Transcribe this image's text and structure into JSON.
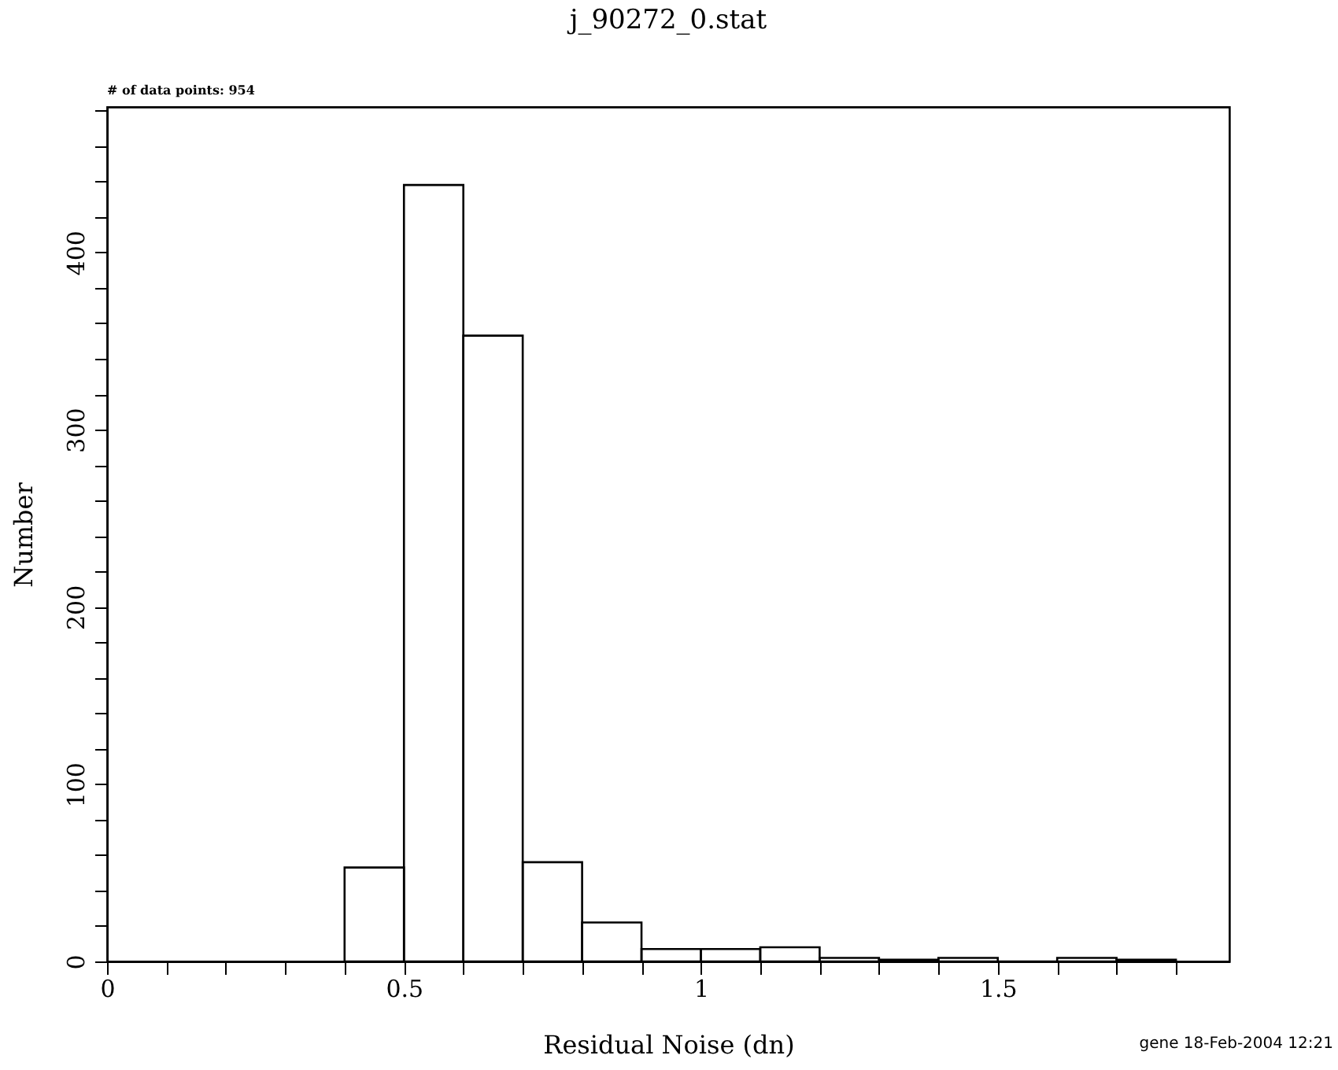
{
  "chart_data": {
    "type": "histogram",
    "title": "j_90272_0.stat",
    "xlabel": "Residual Noise (dn)",
    "ylabel": "Number",
    "bins": [
      0.4,
      0.5,
      0.6,
      0.7,
      0.8,
      0.9,
      1.0,
      1.1,
      1.2,
      1.3,
      1.4,
      1.5,
      1.6,
      1.7,
      1.8
    ],
    "values": [
      53,
      438,
      353,
      56,
      22,
      7,
      7,
      8,
      2,
      1,
      2,
      0,
      2,
      1
    ],
    "color": "#000000",
    "xlim": [
      0,
      1.89
    ],
    "ylim": [
      0,
      482
    ],
    "xticks": [
      0,
      {
        "value": 0.1,
        "label": null
      },
      {
        "value": 0.2,
        "label": null
      },
      {
        "value": 0.3,
        "label": null
      },
      {
        "value": 0.4,
        "label": null
      },
      0.5,
      {
        "value": 0.6,
        "label": null
      },
      {
        "value": 0.7,
        "label": null
      },
      {
        "value": 0.8,
        "label": null
      },
      {
        "value": 0.9,
        "label": null
      },
      1,
      {
        "value": 1.1,
        "label": null
      },
      {
        "value": 1.2,
        "label": null
      },
      {
        "value": 1.3,
        "label": null
      },
      {
        "value": 1.4,
        "label": null
      },
      1.5,
      {
        "value": 1.6,
        "label": null
      },
      {
        "value": 1.7,
        "label": null
      },
      {
        "value": 1.8,
        "label": null
      }
    ],
    "yticks": [
      0,
      {
        "value": 20,
        "label": null
      },
      {
        "value": 40,
        "label": null
      },
      {
        "value": 60,
        "label": null
      },
      {
        "value": 80,
        "label": null
      },
      100,
      {
        "value": 120,
        "label": null
      },
      {
        "value": 140,
        "label": null
      },
      {
        "value": 160,
        "label": null
      },
      {
        "value": 180,
        "label": null
      },
      200,
      {
        "value": 220,
        "label": null
      },
      {
        "value": 240,
        "label": null
      },
      {
        "value": 260,
        "label": null
      },
      {
        "value": 280,
        "label": null
      },
      300,
      {
        "value": 320,
        "label": null
      },
      {
        "value": 340,
        "label": null
      },
      {
        "value": 360,
        "label": null
      },
      {
        "value": 380,
        "label": null
      },
      400,
      {
        "value": 420,
        "label": null
      },
      {
        "value": 440,
        "label": null
      },
      {
        "value": 460,
        "label": null
      },
      {
        "value": 480,
        "label": null
      }
    ],
    "grid": false,
    "annotations": [
      "# of data points: 954",
      "gene 18-Feb-2004 12:21"
    ]
  }
}
